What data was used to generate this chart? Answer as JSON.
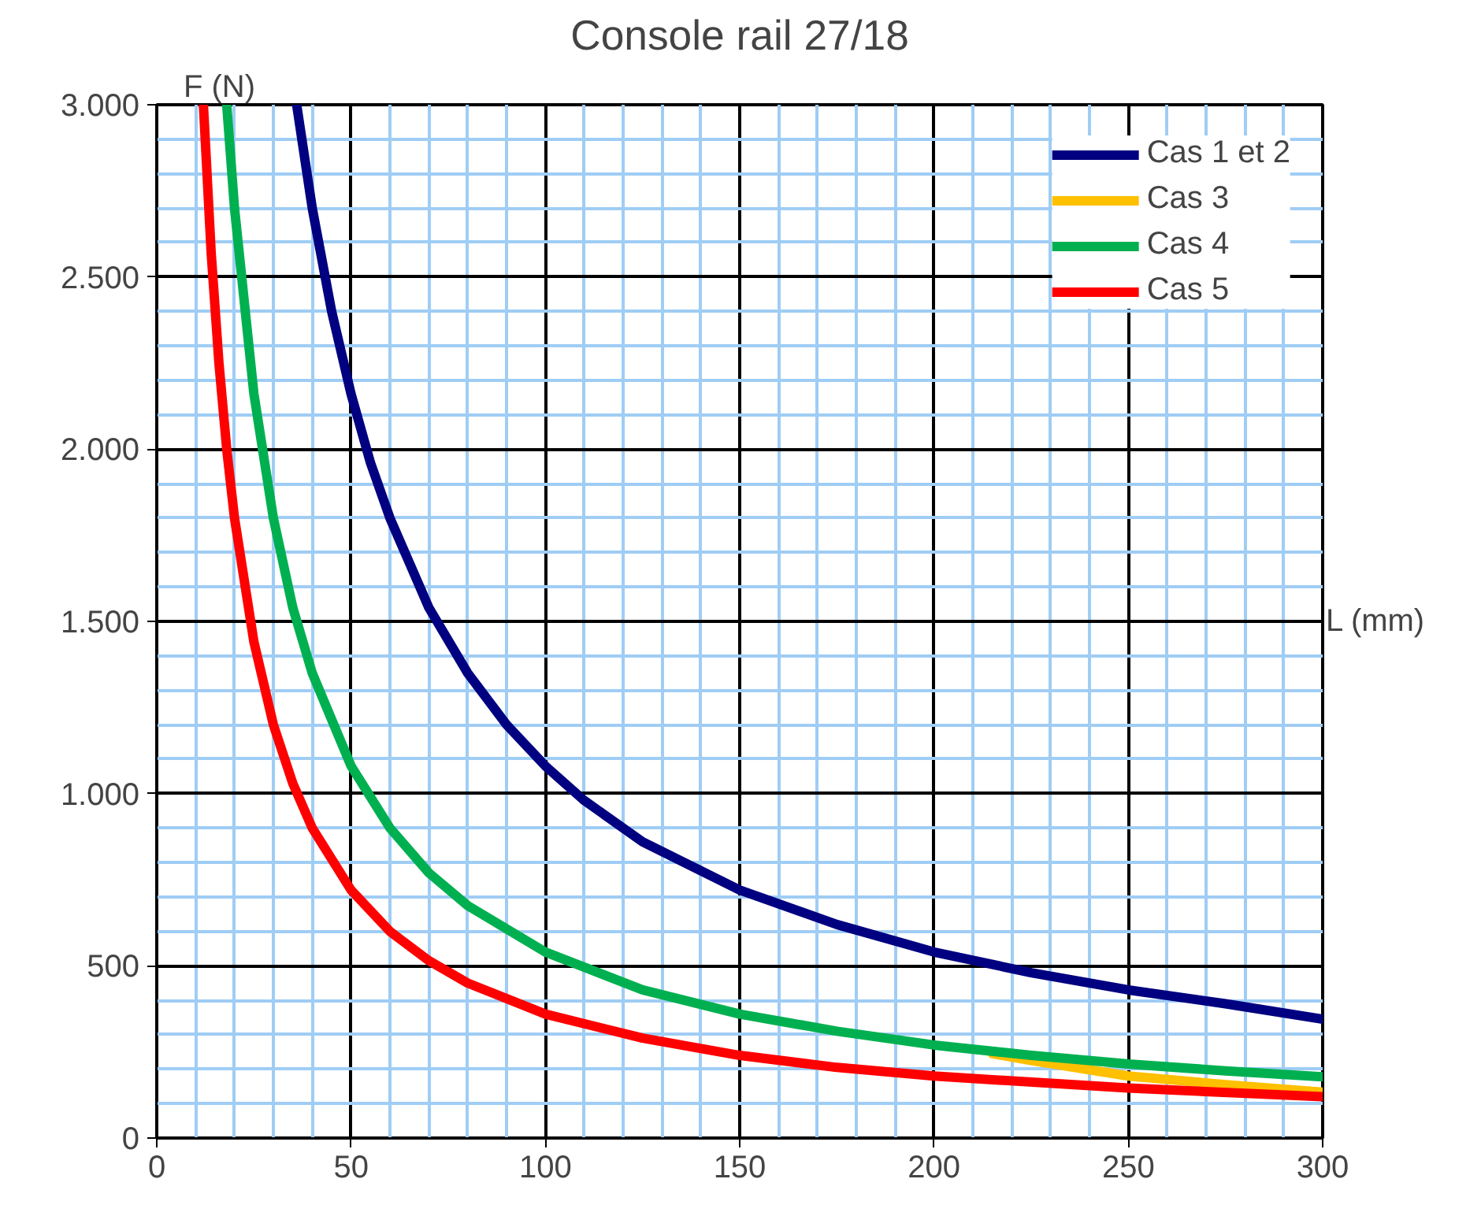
{
  "chart_data": {
    "type": "line",
    "title": "Console rail 27/18",
    "xlabel": "L (mm)",
    "ylabel": "F (N)",
    "xlim": [
      0,
      300
    ],
    "ylim": [
      0,
      3000
    ],
    "xticks": [
      0,
      {
        "value": 10,
        "label": null
      },
      {
        "value": 20,
        "label": null
      },
      {
        "value": 30,
        "label": null
      },
      {
        "value": 40,
        "label": null
      },
      50,
      {
        "value": 60,
        "label": null
      },
      {
        "value": 70,
        "label": null
      },
      {
        "value": 80,
        "label": null
      },
      {
        "value": 90,
        "label": null
      },
      100,
      {
        "value": 110,
        "label": null
      },
      {
        "value": 120,
        "label": null
      },
      {
        "value": 130,
        "label": null
      },
      {
        "value": 140,
        "label": null
      },
      150,
      {
        "value": 160,
        "label": null
      },
      {
        "value": 170,
        "label": null
      },
      {
        "value": 180,
        "label": null
      },
      {
        "value": 190,
        "label": null
      },
      200,
      {
        "value": 210,
        "label": null
      },
      {
        "value": 220,
        "label": null
      },
      {
        "value": 230,
        "label": null
      },
      {
        "value": 240,
        "label": null
      },
      250,
      {
        "value": 260,
        "label": null
      },
      {
        "value": 270,
        "label": null
      },
      {
        "value": 280,
        "label": null
      },
      {
        "value": 290,
        "label": null
      },
      300
    ],
    "yticks": [
      {
        "value": 0,
        "label": "0"
      },
      {
        "value": 100,
        "label": null
      },
      {
        "value": 200,
        "label": null
      },
      {
        "value": 300,
        "label": null
      },
      {
        "value": 400,
        "label": null
      },
      {
        "value": 500,
        "label": "500"
      },
      {
        "value": 600,
        "label": null
      },
      {
        "value": 700,
        "label": null
      },
      {
        "value": 800,
        "label": null
      },
      {
        "value": 900,
        "label": null
      },
      {
        "value": 1000,
        "label": "1.000"
      },
      {
        "value": 1100,
        "label": null
      },
      {
        "value": 1200,
        "label": null
      },
      {
        "value": 1300,
        "label": null
      },
      {
        "value": 1400,
        "label": null
      },
      {
        "value": 1500,
        "label": "1.500"
      },
      {
        "value": 1600,
        "label": null
      },
      {
        "value": 1700,
        "label": null
      },
      {
        "value": 1800,
        "label": null
      },
      {
        "value": 1900,
        "label": null
      },
      {
        "value": 2000,
        "label": "2.000"
      },
      {
        "value": 2100,
        "label": null
      },
      {
        "value": 2200,
        "label": null
      },
      {
        "value": 2300,
        "label": null
      },
      {
        "value": 2400,
        "label": null
      },
      {
        "value": 2500,
        "label": "2.500"
      },
      {
        "value": 2600,
        "label": null
      },
      {
        "value": 2700,
        "label": null
      },
      {
        "value": 2800,
        "label": null
      },
      {
        "value": 2900,
        "label": null
      },
      {
        "value": 3000,
        "label": "3.000"
      }
    ],
    "grid": true,
    "legend": "top right",
    "marker": "none",
    "line_style": "solid",
    "series": [
      {
        "name": "Cas 1 et 2",
        "color": "#000080",
        "x": [
          36,
          40,
          45,
          50,
          55,
          60,
          70,
          80,
          90,
          100,
          110,
          125,
          150,
          175,
          200,
          225,
          250,
          275,
          300
        ],
        "values": [
          3000,
          2700,
          2400,
          2160,
          1960,
          1800,
          1540,
          1350,
          1200,
          1080,
          980,
          860,
          720,
          620,
          540,
          480,
          430,
          390,
          345
        ]
      },
      {
        "name": "Cas 3",
        "color": "#ffc000",
        "x": [
          215,
          225,
          250,
          275,
          300
        ],
        "values": [
          245,
          225,
          180,
          155,
          133
        ]
      },
      {
        "name": "Cas 4",
        "color": "#00b050",
        "x": [
          18,
          20,
          25,
          30,
          35,
          40,
          50,
          60,
          70,
          80,
          100,
          125,
          150,
          175,
          200,
          225,
          250,
          275,
          300
        ],
        "values": [
          3000,
          2700,
          2160,
          1800,
          1540,
          1350,
          1080,
          900,
          770,
          675,
          540,
          430,
          360,
          310,
          270,
          240,
          215,
          195,
          178
        ]
      },
      {
        "name": "Cas 5",
        "color": "#ff0000",
        "x": [
          12,
          14,
          16,
          18,
          20,
          25,
          30,
          35,
          40,
          50,
          60,
          70,
          80,
          100,
          125,
          150,
          175,
          200,
          250,
          300
        ],
        "values": [
          3000,
          2570,
          2250,
          2000,
          1800,
          1440,
          1200,
          1030,
          900,
          720,
          600,
          515,
          450,
          360,
          290,
          240,
          205,
          180,
          145,
          120
        ]
      }
    ]
  }
}
